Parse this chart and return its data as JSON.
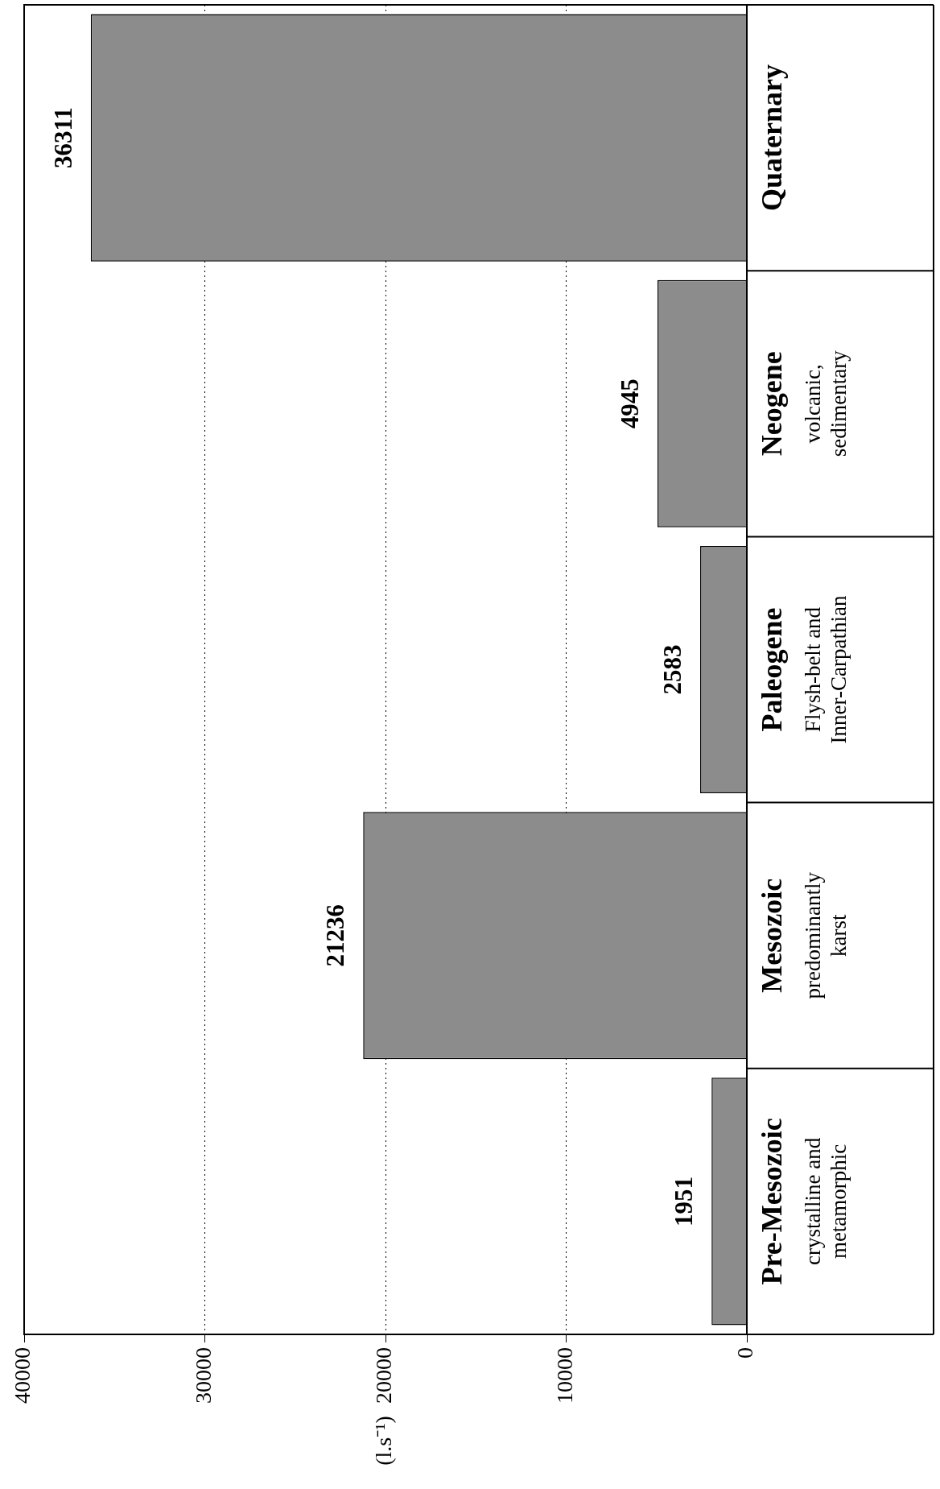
{
  "chart_data": {
    "type": "bar",
    "orientation": "horizontal",
    "ylabel": "(l.s⁻¹)",
    "categories": [
      "Quaternary",
      "Neogene\nvolcanic,\nsedimentary",
      "Paleogene\nFlysh-belt and\nInner-Carpathian",
      "Mesozoic\npredominantly\nkarst",
      "Pre-Mesozoic\ncrystalline and\nmetamorphic"
    ],
    "values": [
      36311,
      4945,
      2583,
      21236,
      1951
    ],
    "color": "#8c8c8c",
    "xlim": [
      40000,
      0
    ],
    "xticks": [
      0,
      10000,
      20000,
      30000,
      40000
    ],
    "grid": "x",
    "data_labels": true,
    "legend": false
  }
}
